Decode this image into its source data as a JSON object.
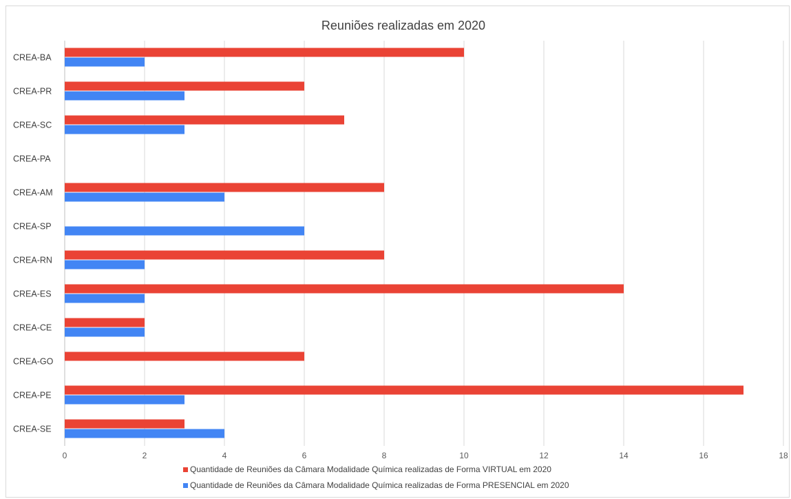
{
  "chart_data": {
    "type": "bar",
    "orientation": "horizontal",
    "title": "Reuniões realizadas em 2020",
    "categories": [
      "CREA-BA",
      "CREA-PR",
      "CREA-SC",
      "CREA-PA",
      "CREA-AM",
      "CREA-SP",
      "CREA-RN",
      "CREA-ES",
      "CREA-CE",
      "CREA-GO",
      "CREA-PE",
      "CREA-SE"
    ],
    "series": [
      {
        "name": "Quantidade de Reuniões da Câmara Modalidade Química realizadas de Forma VIRTUAL em 2020",
        "color": "#ea4335",
        "values": [
          10,
          6,
          7,
          0,
          8,
          0,
          8,
          14,
          2,
          6,
          17,
          3
        ]
      },
      {
        "name": "Quantidade de Reuniões da Câmara Modalidade Química realizadas de Forma PRESENCIAL em 2020",
        "color": "#4285f4",
        "values": [
          2,
          3,
          3,
          0,
          4,
          6,
          2,
          2,
          2,
          0,
          3,
          4
        ]
      }
    ],
    "xlim": [
      0,
      18
    ],
    "xticks": [
      0,
      2,
      4,
      6,
      8,
      10,
      12,
      14,
      16,
      18
    ],
    "grid": true,
    "legend_position": "bottom"
  }
}
